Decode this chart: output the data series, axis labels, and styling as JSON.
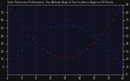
{
  "title": "Solar PV/Inverter Performance  Sun Altitude Angle & Sun Incidence Angle on PV Panels",
  "bg_color": "#111111",
  "plot_bg_color": "#1a1a2e",
  "grid_color": "#555555",
  "text_color": "#cccccc",
  "line1_color": "#4444ff",
  "line2_color": "#ff2222",
  "x_start": 4,
  "x_end": 20,
  "x_ticks": [
    4,
    6,
    8,
    10,
    12,
    14,
    16,
    18,
    20
  ],
  "hours": [
    4,
    4.5,
    5,
    5.5,
    6,
    6.5,
    7,
    7.5,
    8,
    8.5,
    9,
    9.5,
    10,
    10.5,
    11,
    11.5,
    12,
    12.5,
    13,
    13.5,
    14,
    14.5,
    15,
    15.5,
    16,
    16.5,
    17,
    17.5,
    18,
    18.5,
    19,
    19.5,
    20
  ],
  "y_left_min": -10,
  "y_left_max": 80,
  "y_right_min": 0,
  "y_right_max": 90,
  "right_yticks": [
    0,
    10,
    20,
    30,
    40,
    50,
    60,
    70,
    80,
    90
  ]
}
